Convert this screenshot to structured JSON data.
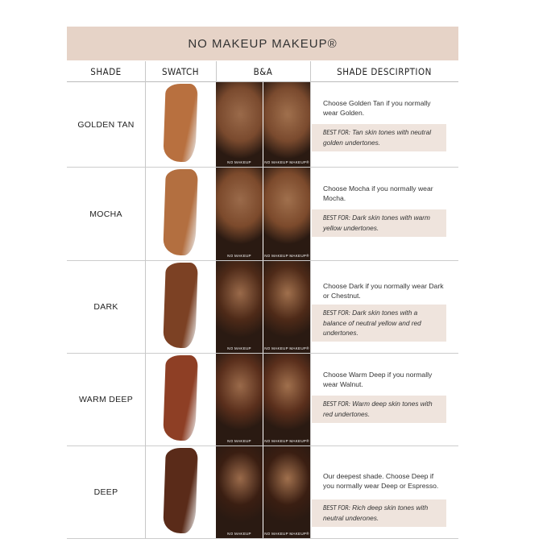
{
  "title": "NO MAKEUP MAKEUP®",
  "headers": [
    "SHADE",
    "SWATCH",
    "B&A",
    "SHADE DESCIRPTION"
  ],
  "photo_captions": {
    "before": "NO MAKEUP",
    "after": "NO MAKEUP MAKEUP®"
  },
  "rows": [
    {
      "shade": "GOLDEN TAN",
      "swatch_color": "#b8703f",
      "skin": "#7a4a2e",
      "description": "Choose Golden Tan if you normally wear Golden.",
      "best_label": "BEST FOR:",
      "best_text": " Tan skin tones with neutral golden undertones."
    },
    {
      "shade": "MOCHA",
      "swatch_color": "#b36f40",
      "skin": "#7c4a2c",
      "description": "Choose Mocha if you normally wear Mocha.",
      "best_label": "BEST FOR:",
      "best_text": " Dark skin tones with warm yellow undertones."
    },
    {
      "shade": "DARK",
      "swatch_color": "#7c4124",
      "skin": "#4e2a18",
      "description": "Choose Dark if you normally wear Dark or Chestnut.",
      "best_label": "BEST FOR:",
      "best_text": " Dark skin tones with a balance of neutral yellow and red undertones."
    },
    {
      "shade": "WARM DEEP",
      "swatch_color": "#8e3f25",
      "skin": "#5a2f1c",
      "description": "Choose Warm Deep if you normally wear Walnut.",
      "best_label": "BEST FOR:",
      "best_text": " Warm deep skin tones with red undertones."
    },
    {
      "shade": "DEEP",
      "swatch_color": "#5a2b19",
      "skin": "#3a1e12",
      "description": "Our deepest shade. Choose Deep if you normally wear Deep or Espresso.",
      "best_label": "BEST FOR:",
      "best_text": " Rich deep skin tones with neutral underones."
    }
  ]
}
